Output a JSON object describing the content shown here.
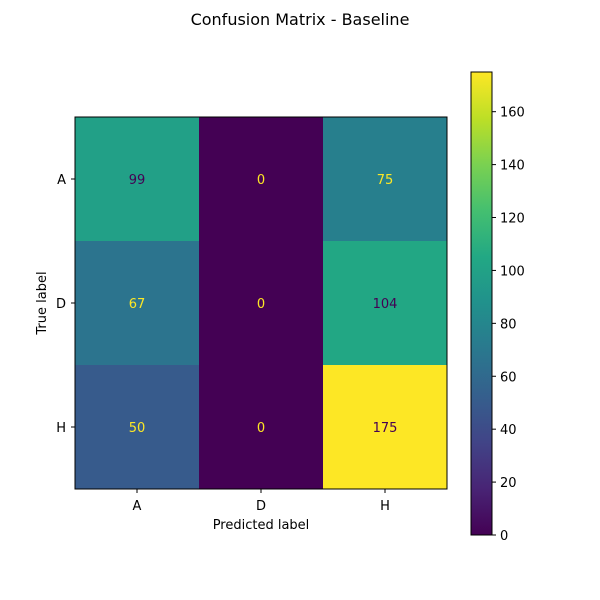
{
  "chart_data": {
    "type": "heatmap",
    "title": "Confusion Matrix - Baseline",
    "xlabel": "Predicted label",
    "ylabel": "True label",
    "x_categories": [
      "A",
      "D",
      "H"
    ],
    "y_categories": [
      "A",
      "D",
      "H"
    ],
    "values": [
      [
        99,
        0,
        75
      ],
      [
        67,
        0,
        104
      ],
      [
        50,
        0,
        175
      ]
    ],
    "colormap": "viridis",
    "color_range": [
      0,
      175
    ],
    "colorbar_ticks": [
      0,
      20,
      40,
      60,
      80,
      100,
      120,
      140,
      160
    ],
    "text_colors": {
      "on_dark": "#fde725",
      "on_light": "#440154"
    },
    "grid": false
  }
}
